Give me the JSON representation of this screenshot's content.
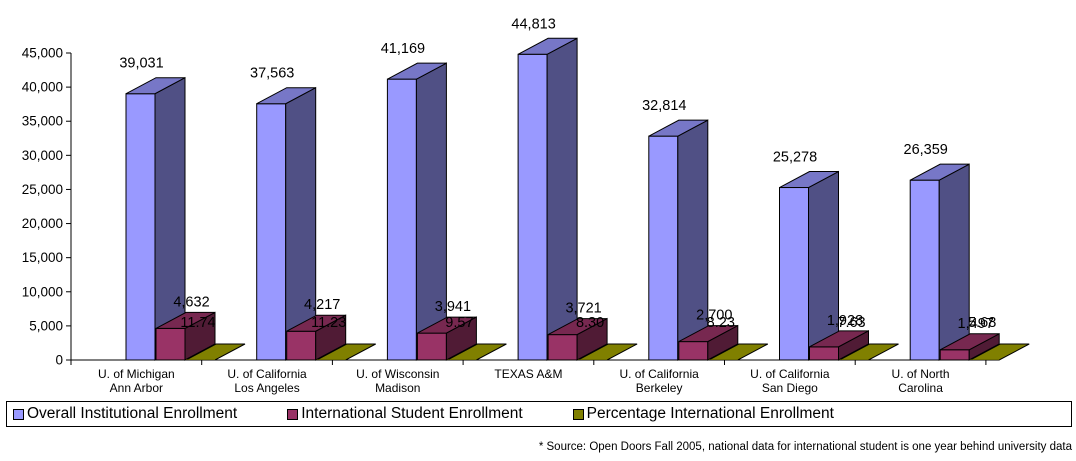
{
  "chart_data": {
    "type": "bar",
    "categories": [
      [
        "U. of Michigan",
        "Ann Arbor"
      ],
      [
        "U. of California",
        "Los Angeles"
      ],
      [
        "U. of Wisconsin",
        "Madison"
      ],
      [
        "TEXAS A&M"
      ],
      [
        "U. of California",
        "Berkeley"
      ],
      [
        "U. of California",
        "San Diego"
      ],
      [
        "U. of North",
        "Carolina"
      ]
    ],
    "series": [
      {
        "name": "Overall Institutional Enrollment",
        "values": [
          39031,
          37563,
          41169,
          44813,
          32814,
          25278,
          26359
        ]
      },
      {
        "name": "International Student Enrollment",
        "values": [
          4632,
          4217,
          3941,
          3721,
          2700,
          1928,
          1497
        ]
      },
      {
        "name": "Percentage International Enrollment",
        "values": [
          11.74,
          11.23,
          9.57,
          8.3,
          8.23,
          7.63,
          5.68
        ]
      }
    ],
    "data_labels": [
      [
        "39,031",
        "4,632",
        "11.74"
      ],
      [
        "37,563",
        "4,217",
        "11.23"
      ],
      [
        "41,169",
        "3,941",
        "9.57"
      ],
      [
        "44,813",
        "3,721",
        "8.30"
      ],
      [
        "32,814",
        "2,700",
        "8.23"
      ],
      [
        "25,278",
        "1,928",
        "7.63"
      ],
      [
        "26,359",
        "1,497",
        "5.68"
      ]
    ],
    "yticks": [
      "0",
      "5,000",
      "10,000",
      "15,000",
      "20,000",
      "25,000",
      "30,000",
      "35,000",
      "40,000",
      "45,000"
    ],
    "ylim": [
      0,
      45000
    ],
    "grid": false,
    "legend_position": "bottom",
    "title": "",
    "xlabel": "",
    "ylabel": ""
  },
  "colors": {
    "overall": "#9999ff",
    "international": "#993366",
    "percentage": "#808000"
  },
  "source_note": "* Source: Open Doors Fall 2005, national data for international student is one year behind university data"
}
